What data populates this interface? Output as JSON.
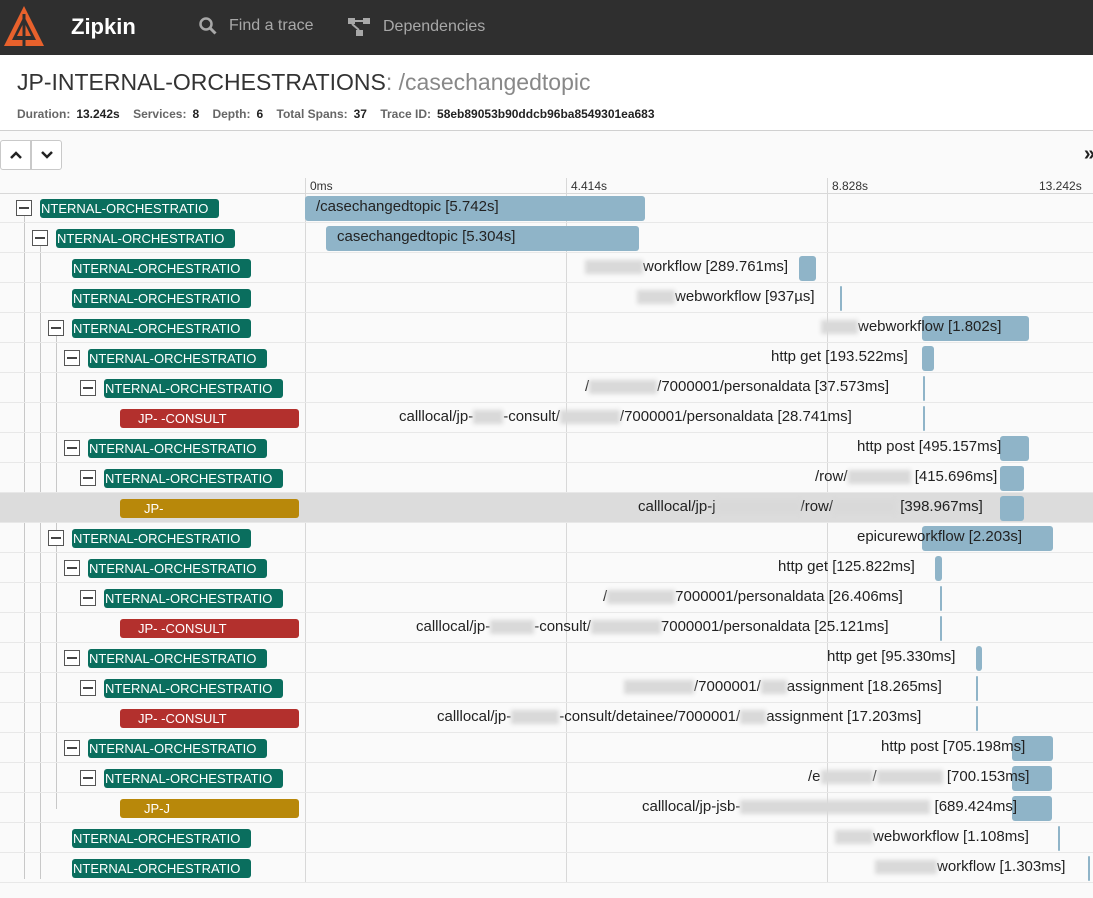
{
  "navbar": {
    "brand": "Zipkin",
    "find_trace": "Find a trace",
    "dependencies": "Dependencies",
    "logo_icon": "zipkin-logo-icon",
    "search_icon": "search-icon",
    "dependencies_icon": "dependencies-icon"
  },
  "header": {
    "service_name": "JP-INTERNAL-ORCHESTRATIONS",
    "span_name": ": /casechangedtopic",
    "duration_label": "Duration:",
    "duration_value": "13.242s",
    "services_label": "Services:",
    "services_value": "8",
    "depth_label": "Depth:",
    "depth_value": "6",
    "spans_label": "Total Spans:",
    "spans_value": "37",
    "trace_id_label": "Trace ID:",
    "trace_id_value": "58eb89053b90ddcb96ba8549301ea683"
  },
  "toolbar": {
    "expand_label": "»"
  },
  "timeline": {
    "ticks": [
      "0ms",
      "4.414s",
      "8.828s",
      "13.242s"
    ],
    "rows": [
      {
        "service": "NTERNAL-ORCHESTRATIO",
        "label": "/casechangedtopic [5.742s]"
      },
      {
        "service": "NTERNAL-ORCHESTRATIO",
        "label": "casechangedtopic [5.304s]"
      },
      {
        "service": "NTERNAL-ORCHESTRATIO",
        "label": "workflow [289.761ms]"
      },
      {
        "service": "NTERNAL-ORCHESTRATIO",
        "label": "webworkflow [937µs]"
      },
      {
        "service": "NTERNAL-ORCHESTRATIO",
        "label": "webworkflow [1.802s]"
      },
      {
        "service": "NTERNAL-ORCHESTRATIO",
        "label": "http get [193.522ms]"
      },
      {
        "service": "NTERNAL-ORCHESTRATIO",
        "label": "/7000001/personaldata [37.573ms]"
      },
      {
        "service": "JP-  -CONSULT",
        "label_a": "calllocal/jp-",
        "label_b": "-consult/",
        "label_c": "/7000001/personaldata [28.741ms]"
      },
      {
        "service": "NTERNAL-ORCHESTRATIO",
        "label": "http post [495.157ms]"
      },
      {
        "service": "NTERNAL-ORCHESTRATIO",
        "label_a": "/row/",
        "label_c": "[415.696ms]"
      },
      {
        "service": "JP-",
        "label_a": "calllocal/jp-j",
        "label_b": "/row/",
        "label_c": "[398.967ms]"
      },
      {
        "service": "NTERNAL-ORCHESTRATIO",
        "label": "epicureworkflow [2.203s]"
      },
      {
        "service": "NTERNAL-ORCHESTRATIO",
        "label": "http get [125.822ms]"
      },
      {
        "service": "NTERNAL-ORCHESTRATIO",
        "label_a": "/",
        "label_c": "7000001/personaldata [26.406ms]"
      },
      {
        "service": "JP-  -CONSULT",
        "label_a": "calllocal/jp-",
        "label_b": "-consult/",
        "label_c": "7000001/personaldata [25.121ms]"
      },
      {
        "service": "NTERNAL-ORCHESTRATIO",
        "label": "http get [95.330ms]"
      },
      {
        "service": "NTERNAL-ORCHESTRATIO",
        "label_a": "/7000001/",
        "label_c": "assignment [18.265ms]"
      },
      {
        "service": "JP-  -CONSULT",
        "label_a": "calllocal/jp-",
        "label_b": "-consult/detainee/7000001/",
        "label_c": "assignment [17.203ms]"
      },
      {
        "service": "NTERNAL-ORCHESTRATIO",
        "label": "http post [705.198ms]"
      },
      {
        "service": "NTERNAL-ORCHESTRATIO",
        "label_a": "/e",
        "label_b": "/",
        "label_c": "[700.153ms]"
      },
      {
        "service": "JP-J",
        "label_a": "calllocal/jp-jsb-",
        "label_c": "[689.424ms]"
      },
      {
        "service": "NTERNAL-ORCHESTRATIO",
        "label": "webworkflow [1.108ms]"
      },
      {
        "service": "NTERNAL-ORCHESTRATIO",
        "label": "workflow [1.303ms]"
      }
    ],
    "durations_s": [
      5.742,
      5.304,
      0.289761,
      0.000937,
      1.802,
      0.193522,
      0.037573,
      0.028741,
      0.495157,
      0.415696,
      0.398967,
      2.203,
      0.125822,
      0.026406,
      0.025121,
      0.09533,
      0.018265,
      0.017203,
      0.705198,
      0.700153,
      0.689424,
      0.001108,
      0.001303
    ],
    "colors": {
      "teal": "#0a6e5e",
      "red": "#b3302d",
      "gold": "#b8880a",
      "bar": "#8fb4c8"
    }
  }
}
